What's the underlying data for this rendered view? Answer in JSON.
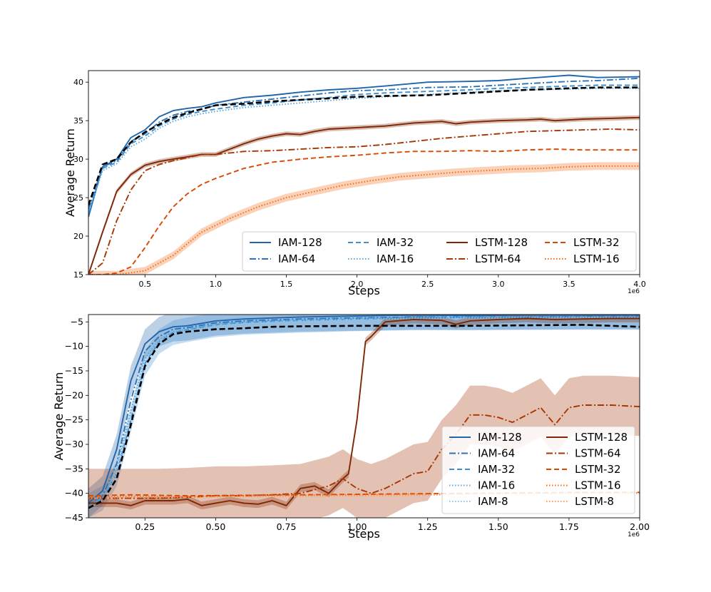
{
  "colors": {
    "IAM-128": "#2166ac",
    "IAM-64": "#2f73b5",
    "IAM-32": "#3f8fcf",
    "IAM-16": "#5aa6dc",
    "IAM-8": "#8ec2e6",
    "LSTM-128": "#7f2704",
    "LSTM-64": "#a63603",
    "LSTM-32": "#d94801",
    "LSTM-16": "#f16913",
    "LSTM-8": "#fd9a5a",
    "baseline": "#000000"
  },
  "chart_data": [
    {
      "type": "line",
      "xlabel": "Steps",
      "ylabel": "Average Return",
      "x_exponent": "1e6",
      "xlim": [
        0.1,
        4.0
      ],
      "ylim": [
        15,
        41.5
      ],
      "xticks": [
        0.5,
        1.0,
        1.5,
        2.0,
        2.5,
        3.0,
        3.5,
        4.0
      ],
      "xtick_labels": [
        "0.5",
        "1.0",
        "1.5",
        "2.0",
        "2.5",
        "3.0",
        "3.5",
        "4.0"
      ],
      "yticks": [
        15,
        20,
        25,
        30,
        35,
        40
      ],
      "ytick_labels": [
        "15",
        "20",
        "25",
        "30",
        "35",
        "40"
      ],
      "legend_loc": "lower-right",
      "legend_cols": 4,
      "legend": [
        "IAM-128",
        "IAM-64",
        "IAM-32",
        "IAM-16",
        "LSTM-128",
        "LSTM-64",
        "LSTM-32",
        "LSTM-16"
      ],
      "series": [
        {
          "name": "IAM-128",
          "style": "solid",
          "x": [
            0.1,
            0.2,
            0.3,
            0.4,
            0.5,
            0.6,
            0.7,
            0.8,
            0.9,
            1.0,
            1.2,
            1.4,
            1.6,
            1.8,
            2.0,
            2.2,
            2.5,
            2.8,
            3.0,
            3.2,
            3.5,
            3.7,
            4.0
          ],
          "y": [
            22.5,
            29.0,
            30.0,
            32.8,
            33.8,
            35.5,
            36.3,
            36.6,
            36.8,
            37.3,
            38.0,
            38.3,
            38.7,
            39.0,
            39.2,
            39.5,
            40.0,
            40.1,
            40.2,
            40.5,
            40.9,
            40.6,
            40.7
          ]
        },
        {
          "name": "IAM-64",
          "style": "dashdot",
          "x": [
            0.1,
            0.2,
            0.3,
            0.4,
            0.5,
            0.6,
            0.7,
            0.8,
            0.9,
            1.0,
            1.2,
            1.4,
            1.6,
            1.8,
            2.0,
            2.2,
            2.5,
            2.8,
            3.0,
            3.2,
            3.5,
            3.7,
            4.0
          ],
          "y": [
            23.5,
            29.0,
            29.8,
            32.3,
            33.3,
            34.8,
            35.7,
            36.2,
            36.5,
            37.0,
            37.4,
            37.8,
            38.2,
            38.6,
            38.9,
            39.0,
            39.3,
            39.4,
            39.6,
            39.8,
            40.1,
            40.2,
            40.5
          ]
        },
        {
          "name": "IAM-32",
          "style": "dashed",
          "x": [
            0.1,
            0.2,
            0.3,
            0.4,
            0.5,
            0.6,
            0.7,
            0.8,
            0.9,
            1.0,
            1.2,
            1.4,
            1.6,
            1.8,
            2.0,
            2.2,
            2.5,
            2.8,
            3.0,
            3.2,
            3.5,
            3.7,
            4.0
          ],
          "y": [
            23.0,
            28.8,
            29.6,
            32.0,
            33.0,
            34.3,
            35.2,
            35.8,
            36.2,
            36.5,
            37.0,
            37.3,
            37.7,
            38.0,
            38.4,
            38.6,
            38.8,
            39.0,
            39.2,
            39.3,
            39.5,
            39.6,
            39.6
          ]
        },
        {
          "name": "IAM-16",
          "style": "dotted",
          "x": [
            0.1,
            0.2,
            0.3,
            0.4,
            0.5,
            0.6,
            0.7,
            0.8,
            0.9,
            1.0,
            1.2,
            1.4,
            1.6,
            1.8,
            2.0,
            2.2,
            2.5,
            2.8,
            3.0,
            3.2,
            3.5,
            3.7,
            4.0
          ],
          "y": [
            23.0,
            28.5,
            29.4,
            31.6,
            32.6,
            34.0,
            34.9,
            35.5,
            35.9,
            36.2,
            36.7,
            37.0,
            37.3,
            37.6,
            37.9,
            38.1,
            38.4,
            38.7,
            38.9,
            39.0,
            39.1,
            39.2,
            39.2
          ]
        },
        {
          "name": "LSTM-128",
          "style": "solid",
          "band": 0.3,
          "x": [
            0.1,
            0.2,
            0.3,
            0.4,
            0.5,
            0.6,
            0.7,
            0.8,
            0.9,
            1.0,
            1.1,
            1.2,
            1.3,
            1.4,
            1.5,
            1.6,
            1.7,
            1.8,
            2.0,
            2.2,
            2.4,
            2.6,
            2.7,
            2.8,
            3.0,
            3.2,
            3.3,
            3.4,
            3.6,
            3.8,
            4.0
          ],
          "y": [
            15.0,
            20.5,
            25.8,
            28.0,
            29.2,
            29.7,
            30.0,
            30.3,
            30.6,
            30.6,
            31.3,
            32.0,
            32.6,
            33.0,
            33.3,
            33.2,
            33.6,
            33.9,
            34.1,
            34.3,
            34.7,
            34.9,
            34.6,
            34.8,
            35.0,
            35.1,
            35.2,
            35.0,
            35.2,
            35.3,
            35.4
          ]
        },
        {
          "name": "LSTM-64",
          "style": "dashdot",
          "x": [
            0.1,
            0.2,
            0.3,
            0.4,
            0.5,
            0.6,
            0.7,
            0.8,
            0.9,
            1.0,
            1.2,
            1.4,
            1.6,
            1.8,
            2.0,
            2.2,
            2.4,
            2.6,
            2.8,
            3.0,
            3.2,
            3.4,
            3.6,
            3.8,
            4.0
          ],
          "y": [
            15.0,
            16.5,
            22.0,
            26.0,
            28.5,
            29.3,
            29.8,
            30.2,
            30.6,
            30.6,
            31.0,
            31.1,
            31.3,
            31.5,
            31.6,
            31.9,
            32.3,
            32.7,
            33.0,
            33.3,
            33.6,
            33.7,
            33.8,
            33.9,
            33.8
          ]
        },
        {
          "name": "LSTM-32",
          "style": "dashed",
          "x": [
            0.1,
            0.2,
            0.3,
            0.4,
            0.5,
            0.6,
            0.7,
            0.8,
            0.9,
            1.0,
            1.2,
            1.4,
            1.5,
            1.6,
            1.8,
            2.0,
            2.2,
            2.4,
            2.6,
            2.8,
            3.0,
            3.2,
            3.4,
            3.6,
            3.8,
            4.0
          ],
          "y": [
            15.0,
            15.0,
            15.2,
            16.0,
            18.5,
            21.3,
            23.8,
            25.5,
            26.7,
            27.5,
            28.8,
            29.6,
            29.8,
            30.0,
            30.3,
            30.5,
            30.8,
            31.0,
            31.0,
            31.1,
            31.0,
            31.2,
            31.3,
            31.2,
            31.2,
            31.2
          ]
        },
        {
          "name": "LSTM-16",
          "style": "dotted",
          "band": 0.5,
          "x": [
            0.1,
            0.3,
            0.5,
            0.7,
            0.9,
            1.1,
            1.3,
            1.5,
            1.7,
            1.9,
            2.1,
            2.3,
            2.5,
            2.7,
            2.9,
            3.1,
            3.3,
            3.5,
            3.7,
            3.9,
            4.0
          ],
          "y": [
            15.0,
            15.0,
            15.5,
            17.5,
            20.5,
            22.3,
            23.8,
            25.0,
            25.8,
            26.6,
            27.2,
            27.7,
            28.0,
            28.3,
            28.5,
            28.7,
            28.8,
            29.0,
            29.1,
            29.1,
            29.1
          ]
        },
        {
          "name": "baseline",
          "style": "dashed-bold",
          "x": [
            0.1,
            0.2,
            0.3,
            0.4,
            0.5,
            0.6,
            0.7,
            0.8,
            0.9,
            1.0,
            1.2,
            1.4,
            1.6,
            1.8,
            2.0,
            2.2,
            2.5,
            2.8,
            3.0,
            3.2,
            3.5,
            3.7,
            4.0
          ],
          "y": [
            24.0,
            29.3,
            30.0,
            32.2,
            33.5,
            34.5,
            35.4,
            36.0,
            36.5,
            37.0,
            37.2,
            37.5,
            37.7,
            37.9,
            38.1,
            38.2,
            38.3,
            38.6,
            38.8,
            39.0,
            39.2,
            39.3,
            39.3
          ]
        }
      ]
    },
    {
      "type": "line",
      "xlabel": "Steps",
      "ylabel": "Average Return",
      "x_exponent": "1e6",
      "xlim": [
        0.05,
        2.0
      ],
      "ylim": [
        -45,
        -3.5
      ],
      "xticks": [
        0.25,
        0.5,
        0.75,
        1.0,
        1.25,
        1.5,
        1.75,
        2.0
      ],
      "xtick_labels": [
        "0.25",
        "0.50",
        "0.75",
        "1.00",
        "1.25",
        "1.50",
        "1.75",
        "2.00"
      ],
      "yticks": [
        -45,
        -40,
        -35,
        -30,
        -25,
        -20,
        -15,
        -10,
        -5
      ],
      "ytick_labels": [
        "−45",
        "−40",
        "−35",
        "−30",
        "−25",
        "−20",
        "−15",
        "−10",
        "−5"
      ],
      "legend_loc": "lower-right",
      "legend_cols": 2,
      "legend": [
        "IAM-128",
        "LSTM-128",
        "IAM-64",
        "LSTM-64",
        "IAM-32",
        "LSTM-32",
        "IAM-16",
        "LSTM-16",
        "IAM-8",
        "LSTM-8"
      ],
      "series": [
        {
          "name": "IAM-128",
          "style": "solid",
          "band": 3,
          "x": [
            0.05,
            0.1,
            0.15,
            0.2,
            0.25,
            0.3,
            0.35,
            0.4,
            0.5,
            0.6,
            0.8,
            1.0,
            1.2,
            1.4,
            1.6,
            1.8,
            2.0
          ],
          "y": [
            -42,
            -39.5,
            -31,
            -17,
            -9.5,
            -7,
            -6,
            -5.8,
            -4.8,
            -4.4,
            -4.0,
            -3.8,
            -3.6,
            -3.7,
            -3.6,
            -3.6,
            -3.6
          ]
        },
        {
          "name": "IAM-64",
          "style": "dashdot",
          "x": [
            0.05,
            0.1,
            0.15,
            0.2,
            0.25,
            0.3,
            0.35,
            0.4,
            0.5,
            0.6,
            0.8,
            1.0,
            1.2,
            1.4,
            1.6,
            1.8,
            2.0
          ],
          "y": [
            -42.5,
            -40.5,
            -34,
            -21,
            -11,
            -8,
            -6.5,
            -6.2,
            -5.2,
            -4.8,
            -4.4,
            -4.2,
            -4.0,
            -4.0,
            -4.0,
            -3.9,
            -3.9
          ]
        },
        {
          "name": "IAM-32",
          "style": "dashed",
          "band": 2.5,
          "x": [
            0.05,
            0.1,
            0.15,
            0.2,
            0.25,
            0.3,
            0.35,
            0.4,
            0.5,
            0.6,
            0.8,
            1.0,
            1.2,
            1.4,
            1.6,
            1.8,
            2.0
          ],
          "y": [
            -42.5,
            -41,
            -36,
            -25,
            -13.5,
            -9,
            -7.2,
            -6.6,
            -5.6,
            -5.1,
            -4.7,
            -4.4,
            -4.2,
            -4.1,
            -4.1,
            -4.0,
            -4.0
          ]
        },
        {
          "name": "IAM-16",
          "style": "dotted",
          "x": [
            0.05,
            0.1,
            0.15,
            0.2,
            0.25,
            0.3,
            0.35,
            0.4,
            0.5,
            0.6,
            0.8,
            1.0,
            1.2,
            1.4,
            1.6,
            1.8,
            2.0
          ],
          "y": [
            -42.5,
            -41,
            -35,
            -23,
            -12.5,
            -8.5,
            -7,
            -6.5,
            -5.5,
            -5.0,
            -4.6,
            -4.3,
            -4.1,
            -4.0,
            -4.0,
            -4.0,
            -4.0
          ]
        },
        {
          "name": "IAM-8",
          "style": "dotted",
          "x": [
            0.05,
            0.1,
            0.15,
            0.2,
            0.25,
            0.3,
            0.35,
            0.4,
            0.5,
            0.6,
            0.8,
            1.0,
            1.2,
            1.4,
            1.6,
            1.8,
            2.0
          ],
          "y": [
            -43,
            -41.5,
            -36,
            -24,
            -13,
            -9,
            -7.4,
            -6.8,
            -5.8,
            -5.3,
            -4.8,
            -4.5,
            -4.3,
            -4.2,
            -4.2,
            -4.1,
            -4.1
          ]
        },
        {
          "name": "LSTM-128",
          "style": "solid",
          "band": 0.8,
          "x": [
            0.05,
            0.1,
            0.15,
            0.2,
            0.25,
            0.3,
            0.35,
            0.4,
            0.45,
            0.5,
            0.55,
            0.6,
            0.65,
            0.7,
            0.75,
            0.8,
            0.85,
            0.9,
            0.95,
            0.97,
            1.0,
            1.03,
            1.05,
            1.1,
            1.2,
            1.3,
            1.35,
            1.4,
            1.5,
            1.6,
            1.7,
            1.8,
            1.9,
            2.0
          ],
          "y": [
            -42,
            -42,
            -42,
            -42.5,
            -41.5,
            -41.5,
            -41.5,
            -41.2,
            -42.5,
            -42,
            -41.5,
            -42,
            -42.2,
            -41.5,
            -42.5,
            -39,
            -38.5,
            -40,
            -37,
            -36,
            -25,
            -9,
            -8,
            -5,
            -4.5,
            -4.7,
            -5.5,
            -4.8,
            -4.5,
            -4.3,
            -4.5,
            -4.4,
            -4.3,
            -4.3
          ]
        },
        {
          "name": "LSTM-64",
          "style": "dashdot",
          "band": 6,
          "x": [
            0.05,
            0.1,
            0.2,
            0.3,
            0.4,
            0.5,
            0.6,
            0.7,
            0.8,
            0.9,
            0.95,
            1.0,
            1.05,
            1.1,
            1.2,
            1.25,
            1.3,
            1.35,
            1.4,
            1.45,
            1.5,
            1.55,
            1.6,
            1.65,
            1.7,
            1.75,
            1.8,
            1.9,
            2.0
          ],
          "y": [
            -41,
            -41,
            -41,
            -41,
            -40.8,
            -40.5,
            -40.5,
            -40.3,
            -40,
            -38.5,
            -37,
            -39,
            -40,
            -39,
            -36,
            -35.5,
            -31,
            -28,
            -24,
            -24,
            -24.5,
            -25.5,
            -24,
            -22.5,
            -26,
            -22.5,
            -22,
            -22,
            -22.3
          ]
        },
        {
          "name": "LSTM-32",
          "style": "dashed",
          "x": [
            0.05,
            0.2,
            0.4,
            0.6,
            0.8,
            1.0,
            1.2,
            1.4,
            1.6,
            1.8,
            2.0
          ],
          "y": [
            -40.5,
            -40.3,
            -40.5,
            -40.4,
            -40.3,
            -40.2,
            -40.1,
            -40.0,
            -39.9,
            -39.8,
            -39.8
          ]
        },
        {
          "name": "LSTM-16",
          "style": "dotted",
          "x": [
            0.05,
            0.2,
            0.4,
            0.6,
            0.8,
            1.0,
            1.2,
            1.4,
            1.6,
            1.8,
            2.0
          ],
          "y": [
            -40.8,
            -40.6,
            -40.7,
            -40.5,
            -40.4,
            -40.3,
            -40.2,
            -40.1,
            -40.0,
            -39.9,
            -39.9
          ]
        },
        {
          "name": "LSTM-8",
          "style": "dotted",
          "x": [
            0.05,
            0.2,
            0.4,
            0.6,
            0.8,
            1.0,
            1.2,
            1.4,
            1.6,
            1.8,
            2.0
          ],
          "y": [
            -41.0,
            -40.8,
            -40.8,
            -40.7,
            -40.6,
            -40.5,
            -40.4,
            -40.2,
            -40.1,
            -40.0,
            -40.0
          ]
        },
        {
          "name": "baseline",
          "style": "dashed-bold",
          "x": [
            0.05,
            0.1,
            0.15,
            0.2,
            0.25,
            0.3,
            0.35,
            0.4,
            0.5,
            0.6,
            0.7,
            0.8,
            1.0,
            1.2,
            1.4,
            1.6,
            1.8,
            2.0
          ],
          "y": [
            -43,
            -41.5,
            -37,
            -26,
            -14,
            -9.5,
            -7.5,
            -7,
            -6.5,
            -6.3,
            -6.0,
            -5.9,
            -5.8,
            -5.8,
            -5.8,
            -5.7,
            -5.6,
            -6.0
          ]
        }
      ]
    }
  ]
}
